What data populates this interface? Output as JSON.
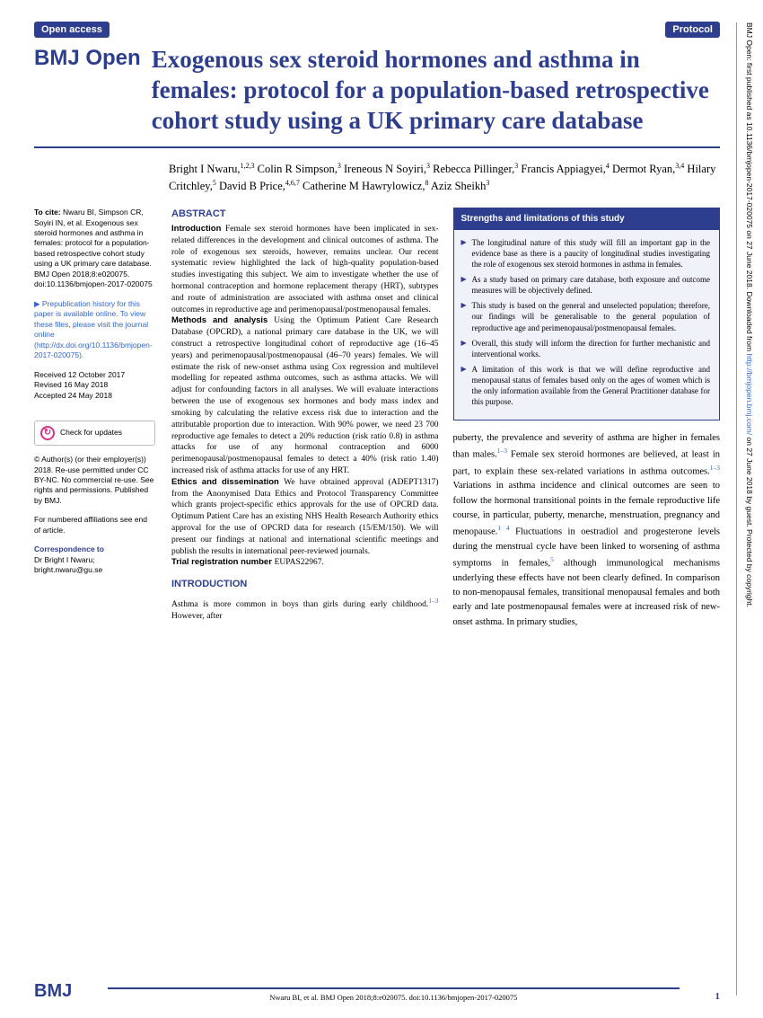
{
  "header": {
    "openAccess": "Open access",
    "protocol": "Protocol",
    "journal": "BMJ Open"
  },
  "title": "Exogenous sex steroid hormones and asthma in females: protocol for a population-based retrospective cohort study using a UK primary care database",
  "authors_html": "Bright I Nwaru,<sup>1,2,3</sup> Colin R Simpson,<sup>3</sup> Ireneous N Soyiri,<sup>3</sup> Rebecca Pillinger,<sup>3</sup> Francis Appiagyei,<sup>4</sup> Dermot Ryan,<sup>3,4</sup> Hilary Critchley,<sup>5</sup> David B Price,<sup>4,6,7</sup> Catherine M Hawrylowicz,<sup>8</sup> Aziz Sheikh<sup>3</sup>",
  "left": {
    "cite": "Nwaru BI, Simpson CR, Soyiri IN, et al. Exogenous sex steroid hormones and asthma in females: protocol for a population-based retrospective cohort study using a UK primary care database. BMJ Open 2018;8:e020075. doi:10.1136/bmjopen-2017-020075",
    "prepub": "Prepublication history for this paper is available online. To view these files, please visit the journal online (http://dx.doi.org/10.1136/bmjopen-2017-020075).",
    "dates": "Received 12 October 2017\nRevised 16 May 2018\nAccepted 24 May 2018",
    "check": "Check for updates",
    "copyright": "© Author(s) (or their employer(s)) 2018. Re-use permitted under CC BY-NC. No commercial re-use. See rights and permissions. Published by BMJ.",
    "affil": "For numbered affiliations see end of article.",
    "corrHead": "Correspondence to",
    "corr": "Dr Bright I Nwaru;\nbright.nwaru@gu.se"
  },
  "abstract": {
    "head": "ABSTRACT",
    "intro": "Female sex steroid hormones have been implicated in sex-related differences in the development and clinical outcomes of asthma. The role of exogenous sex steroids, however, remains unclear. Our recent systematic review highlighted the lack of high-quality population-based studies investigating this subject. We aim to investigate whether the use of hormonal contraception and hormone replacement therapy (HRT), subtypes and route of administration are associated with asthma onset and clinical outcomes in reproductive age and perimenopausal/postmenopausal females.",
    "methods": "Using the Optimum Patient Care Research Database (OPCRD), a national primary care database in the UK, we will construct a retrospective longitudinal cohort of reproductive age (16–45 years) and perimenopausal/postmenopausal (46–70 years) females. We will estimate the risk of new-onset asthma using Cox regression and multilevel modelling for repeated asthma outcomes, such as asthma attacks. We will adjust for confounding factors in all analyses. We will evaluate interactions between the use of exogenous sex hormones and body mass index and smoking by calculating the relative excess risk due to interaction and the attributable proportion due to interaction. With 90% power, we need 23 700 reproductive age females to detect a 20% reduction (risk ratio 0.8) in asthma attacks for use of any hormonal contraception and 6000 perimenopausal/postmenopausal females to detect a 40% (risk ratio 1.40) increased risk of asthma attacks for use of any HRT.",
    "ethics": "We have obtained approval (ADEPT1317) from the Anonymised Data Ethics and Protocol Transparency Committee which grants project-specific ethics approvals for the use of OPCRD data. Optimum Patient Care has an existing NHS Health Research Authority ethics approval for the use of OPCRD data for research (15/EM/150). We will present our findings at national and international scientific meetings and publish the results in international peer-reviewed journals.",
    "trial": "EUPAS22967."
  },
  "introHead": "INTRODUCTION",
  "introText": "Asthma is more common in boys than girls during early childhood.",
  "introRef": "1–3",
  "introAfter": " However, after",
  "box": {
    "head": "Strengths and limitations of this study",
    "items": [
      "The longitudinal nature of this study will fill an important gap in the evidence base as there is a paucity of longitudinal studies investigating the role of exogenous sex steroid hormones in asthma in females.",
      "As a study based on primary care database, both exposure and outcome measures will be objectively defined.",
      "This study is based on the general and unselected population; therefore, our findings will be generalisable to the general population of reproductive age and perimenopausal/postmenopausal females.",
      "Overall, this study will inform the direction for further mechanistic and interventional works.",
      "A limitation of this work is that we will define reproductive and menopausal status of females based only on the ages of women which is the only information available from the General Practitioner database for this purpose."
    ]
  },
  "bodyText": "puberty, the prevalence and severity of asthma are higher in females than males.<span class='ref'>1–3</span> Female sex steroid hormones are believed, at least in part, to explain these sex-related variations in asthma outcomes.<span class='ref'>1–3</span> Variations in asthma incidence and clinical outcomes are seen to follow the hormonal transitional points in the female reproductive life course, in particular, puberty, menarche, menstruation, pregnancy and menopause.<span class='ref'>1 4</span> Fluctuations in oestradiol and progesterone levels during the menstrual cycle have been linked to worsening of asthma symptoms in females,<span class='ref'>5</span> although immunological mechanisms underlying these effects have not been clearly defined. In comparison to non-menopausal females, transitional menopausal females and both early and late postmenopausal females were at increased risk of new-onset asthma. In primary studies,",
  "footer": {
    "logo": "BMJ",
    "cite": "Nwaru BI, et al. BMJ Open 2018;8:e020075. doi:10.1136/bmjopen-2017-020075",
    "page": "1"
  },
  "side": "BMJ Open: first published as 10.1136/bmjopen-2017-020075 on 27 June 2018. Downloaded from <span class='link'>http://bmjopen.bmj.com/</span> on 27 June 2018 by guest. Protected by copyright."
}
